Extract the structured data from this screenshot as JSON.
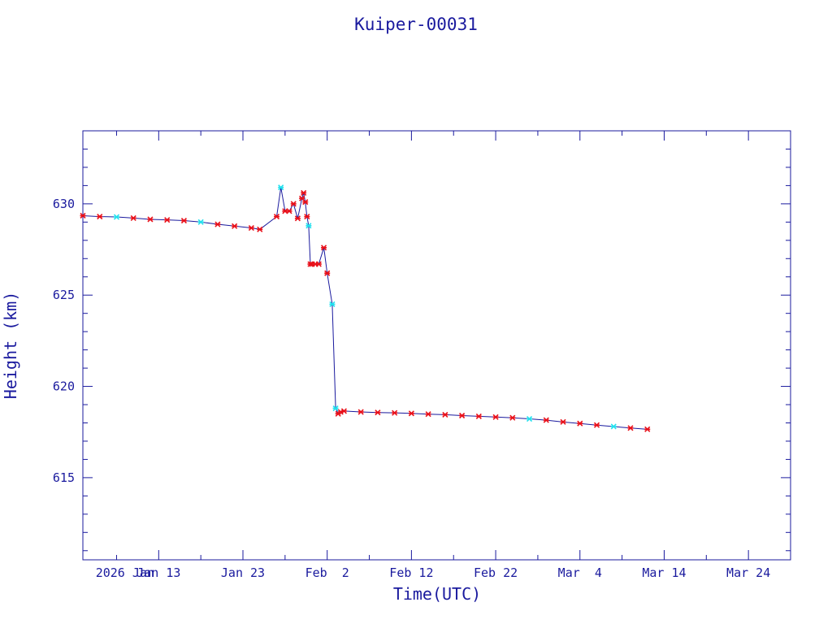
{
  "chart_data": {
    "type": "line",
    "title": "Kuiper-00031",
    "xlabel": "Time(UTC)",
    "ylabel": "Height (km)",
    "xlim": [
      "2026-01-04",
      "2026-03-29"
    ],
    "ylim": [
      610.5,
      634
    ],
    "x_ticks": [
      {
        "date": "2026-01-09",
        "label": "2026 Jan"
      },
      {
        "date": "2026-01-13",
        "label": "Jan 13"
      },
      {
        "date": "2026-01-23",
        "label": "Jan 23"
      },
      {
        "date": "2026-02-02",
        "label": "Feb  2"
      },
      {
        "date": "2026-02-12",
        "label": "Feb 12"
      },
      {
        "date": "2026-02-22",
        "label": "Feb 22"
      },
      {
        "date": "2026-03-04",
        "label": "Mar  4"
      },
      {
        "date": "2026-03-14",
        "label": "Mar 14"
      },
      {
        "date": "2026-03-24",
        "label": "Mar 24"
      }
    ],
    "y_ticks": [
      615,
      620,
      625,
      630
    ],
    "series": [
      {
        "line_color": "#1a1a9e",
        "marker_color": "#e8101a",
        "highlight_color": "#22e0ee",
        "x": [
          "2026-01-04",
          "2026-01-06",
          "2026-01-08",
          "2026-01-10",
          "2026-01-12",
          "2026-01-14",
          "2026-01-16",
          "2026-01-18",
          "2026-01-20",
          "2026-01-22",
          "2026-01-24",
          "2026-01-25",
          "2026-01-27",
          "2026-01-27.5",
          "2026-01-28",
          "2026-01-28.5",
          "2026-01-29",
          "2026-01-29.5",
          "2026-01-30",
          "2026-01-30.2",
          "2026-01-30.4",
          "2026-01-30.6",
          "2026-01-30.8",
          "2026-01-31",
          "2026-01-31.2",
          "2026-01-31.6",
          "2026-02-01",
          "2026-02-01.6",
          "2026-02-02",
          "2026-02-02.6",
          "2026-02-03",
          "2026-02-03.3",
          "2026-02-03.6",
          "2026-02-04",
          "2026-02-06",
          "2026-02-08",
          "2026-02-10",
          "2026-02-12",
          "2026-02-14",
          "2026-02-16",
          "2026-02-18",
          "2026-02-20",
          "2026-02-22",
          "2026-02-24",
          "2026-02-26",
          "2026-02-28",
          "2026-03-02",
          "2026-03-04",
          "2026-03-06",
          "2026-03-08",
          "2026-03-10",
          "2026-03-12"
        ],
        "y": [
          629.35,
          629.3,
          629.28,
          629.22,
          629.15,
          629.12,
          629.08,
          629.0,
          628.88,
          628.78,
          628.68,
          628.6,
          629.3,
          630.9,
          629.6,
          629.6,
          630.0,
          629.2,
          630.3,
          630.6,
          630.1,
          629.3,
          628.8,
          626.7,
          626.7,
          626.7,
          626.7,
          627.6,
          626.2,
          624.5,
          618.8,
          618.5,
          618.6,
          618.65,
          618.6,
          618.57,
          618.55,
          618.52,
          618.48,
          618.45,
          618.4,
          618.36,
          618.32,
          618.28,
          618.22,
          618.15,
          618.05,
          617.97,
          617.88,
          617.8,
          617.72,
          617.65
        ],
        "highlight_indices": [
          2,
          7,
          13,
          22,
          29,
          30,
          44,
          49
        ]
      }
    ]
  }
}
